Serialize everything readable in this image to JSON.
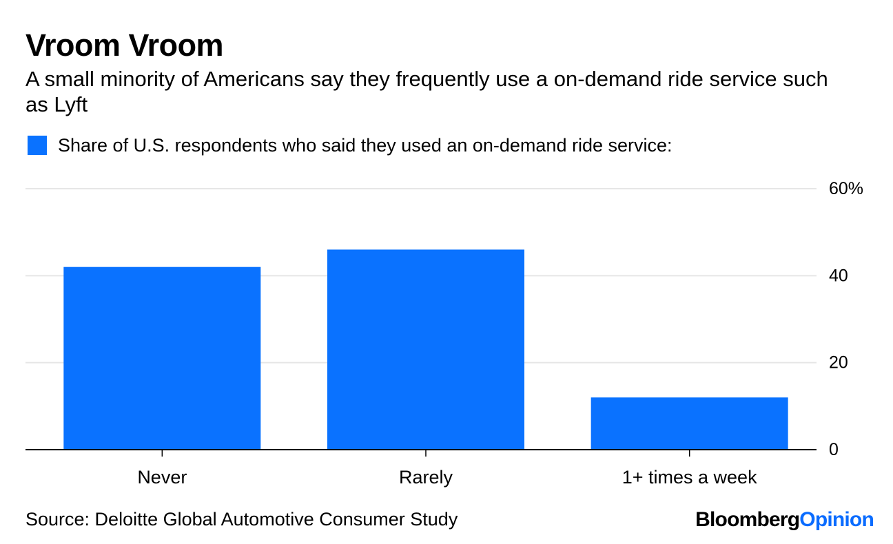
{
  "header": {
    "title": "Vroom Vroom",
    "subtitle": "A small minority of Americans say they frequently use a on-demand ride service such as Lyft"
  },
  "legend": {
    "label": "Share of U.S. respondents who said they used an on-demand ride service:",
    "color": "#0a72ff"
  },
  "footer": {
    "source": "Source: Deloitte Global Automotive Consumer Study",
    "logo_part1": "Bloomberg",
    "logo_part2": "Opinion"
  },
  "chart_data": {
    "type": "bar",
    "categories": [
      "Never",
      "Rarely",
      "1+ times a week"
    ],
    "series": [
      {
        "name": "Share of U.S. respondents who said they used an on-demand ride service:",
        "values": [
          42,
          46,
          12
        ]
      }
    ],
    "ylim": [
      0,
      60
    ],
    "yticks": [
      0,
      20,
      40,
      60
    ],
    "ytick_labels": [
      "0",
      "20",
      "40",
      "60%"
    ],
    "y_axis_side": "right",
    "grid": true,
    "bar_color": "#0a72ff",
    "grid_color": "#e6e6e6"
  }
}
